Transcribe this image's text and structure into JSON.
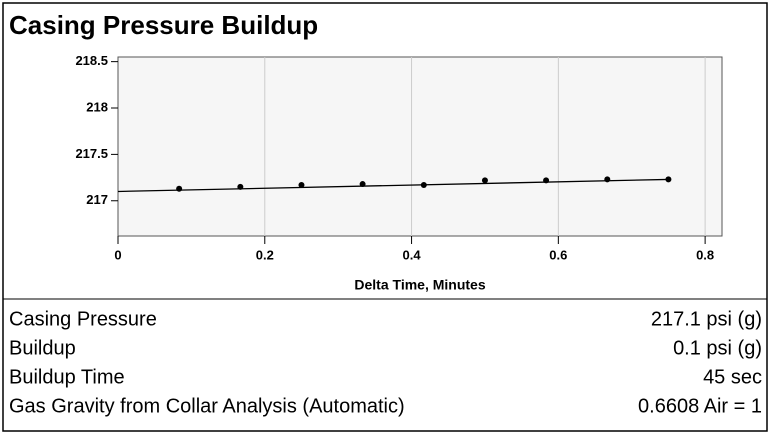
{
  "chart_data": {
    "type": "scatter",
    "title": "Casing Pressure Buildup",
    "x_label": "Delta Time, Minutes",
    "x": [
      0.0833,
      0.1667,
      0.25,
      0.3333,
      0.4167,
      0.5,
      0.5833,
      0.6667,
      0.75
    ],
    "values": [
      217.13,
      217.15,
      217.17,
      217.18,
      217.17,
      217.22,
      217.22,
      217.23,
      217.23
    ],
    "color": "#000000",
    "fit_line": {
      "x": [
        0,
        0.75
      ],
      "values": [
        217.1,
        217.23
      ],
      "color": "#000000"
    },
    "xlim": [
      0,
      0.823
    ],
    "xticks": [
      0,
      0.2,
      0.4,
      0.6,
      0.8
    ],
    "ylim": [
      216.62,
      218.55
    ],
    "yticks": [
      217,
      217.5,
      218,
      218.5
    ],
    "grid": true
  },
  "table": {
    "rows": [
      [
        "Casing Pressure",
        "217.1 psi (g)"
      ],
      [
        "Buildup",
        "0.1 psi (g)"
      ],
      [
        "Buildup Time",
        "45 sec"
      ],
      [
        "Gas Gravity from Collar Analysis (Automatic)",
        "0.6608 Air = 1"
      ]
    ]
  }
}
